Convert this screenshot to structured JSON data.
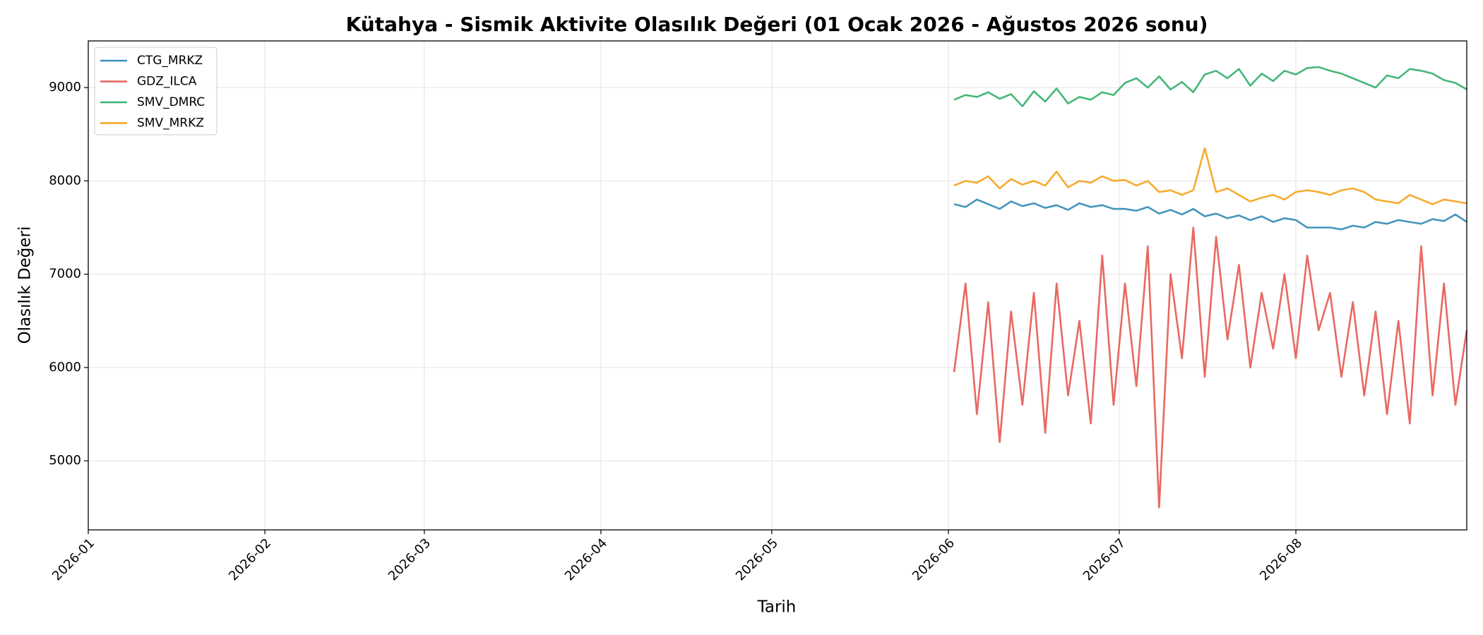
{
  "chart_data": {
    "type": "line",
    "title": "Kütahya - Sismik Aktivite Olasılık Değeri (01 Ocak 2026 - Ağustos 2026 sonu)",
    "x_label": "Tarih",
    "y_label": "Olasılık Değeri",
    "x": [
      "2026-06-02",
      "2026-06-04",
      "2026-06-06",
      "2026-06-08",
      "2026-06-10",
      "2026-06-12",
      "2026-06-14",
      "2026-06-16",
      "2026-06-18",
      "2026-06-20",
      "2026-06-22",
      "2026-06-24",
      "2026-06-26",
      "2026-06-28",
      "2026-06-30",
      "2026-07-02",
      "2026-07-04",
      "2026-07-06",
      "2026-07-08",
      "2026-07-10",
      "2026-07-12",
      "2026-07-14",
      "2026-07-16",
      "2026-07-18",
      "2026-07-20",
      "2026-07-22",
      "2026-07-24",
      "2026-07-26",
      "2026-07-28",
      "2026-07-30",
      "2026-08-01",
      "2026-08-03",
      "2026-08-05",
      "2026-08-07",
      "2026-08-09",
      "2026-08-11",
      "2026-08-13",
      "2026-08-15",
      "2026-08-17",
      "2026-08-19",
      "2026-08-21",
      "2026-08-23",
      "2026-08-25",
      "2026-08-27",
      "2026-08-29",
      "2026-08-31"
    ],
    "series": [
      {
        "name": "CTG_MRKZ",
        "color": "#3a8fb7",
        "values": [
          7750,
          7720,
          7800,
          7750,
          7700,
          7780,
          7730,
          7760,
          7710,
          7740,
          7690,
          7760,
          7720,
          7740,
          7700,
          7700,
          7680,
          7720,
          7650,
          7690,
          7640,
          7700,
          7620,
          7650,
          7600,
          7630,
          7580,
          7620,
          7560,
          7600,
          7580,
          7500,
          7500,
          7500,
          7480,
          7520,
          7500,
          7560,
          7540,
          7580,
          7560,
          7540,
          7590,
          7570,
          7640,
          7560
        ]
      },
      {
        "name": "GDZ_ILCA",
        "color": "#e8605a",
        "values": [
          5950,
          6900,
          5500,
          6700,
          5200,
          6600,
          5600,
          6800,
          5300,
          6900,
          5700,
          6500,
          5400,
          7200,
          5600,
          6900,
          5800,
          7300,
          4500,
          7000,
          6100,
          7500,
          5900,
          7400,
          6300,
          7100,
          6000,
          6800,
          6200,
          7000,
          6100,
          7200,
          6400,
          6800,
          5900,
          6700,
          5700,
          6600,
          5500,
          6500,
          5400,
          7300,
          5700,
          6900,
          5600,
          6400
        ]
      },
      {
        "name": "SMV_DMRC",
        "color": "#3cb371",
        "values": [
          8870,
          8920,
          8900,
          8950,
          8880,
          8930,
          8800,
          8960,
          8850,
          8990,
          8830,
          8900,
          8870,
          8950,
          8920,
          9050,
          9100,
          9000,
          9120,
          8980,
          9060,
          8950,
          9140,
          9180,
          9100,
          9200,
          9020,
          9150,
          9070,
          9180,
          9140,
          9210,
          9220,
          9180,
          9150,
          9100,
          9050,
          9000,
          9130,
          9100,
          9200,
          9180,
          9150,
          9080,
          9050,
          8980
        ]
      },
      {
        "name": "SMV_MRKZ",
        "color": "#f5a623",
        "values": [
          7950,
          8000,
          7980,
          8050,
          7920,
          8020,
          7960,
          8000,
          7950,
          8100,
          7930,
          8000,
          7980,
          8050,
          8000,
          8010,
          7950,
          8000,
          7880,
          7900,
          7850,
          7900,
          8350,
          7880,
          7920,
          7850,
          7780,
          7820,
          7850,
          7800,
          7880,
          7900,
          7880,
          7850,
          7900,
          7920,
          7880,
          7800,
          7780,
          7760,
          7850,
          7800,
          7750,
          7800,
          7780,
          7760
        ]
      }
    ],
    "xlim": [
      "2026-01-01",
      "2026-08-31"
    ],
    "xticks": [
      "2026-01",
      "2026-02",
      "2026-03",
      "2026-04",
      "2026-05",
      "2026-06",
      "2026-07",
      "2026-08"
    ],
    "ylim": [
      4260,
      9500
    ],
    "yticks": [
      5000,
      6000,
      7000,
      8000,
      9000
    ],
    "grid": true,
    "legend": "upper-left"
  }
}
